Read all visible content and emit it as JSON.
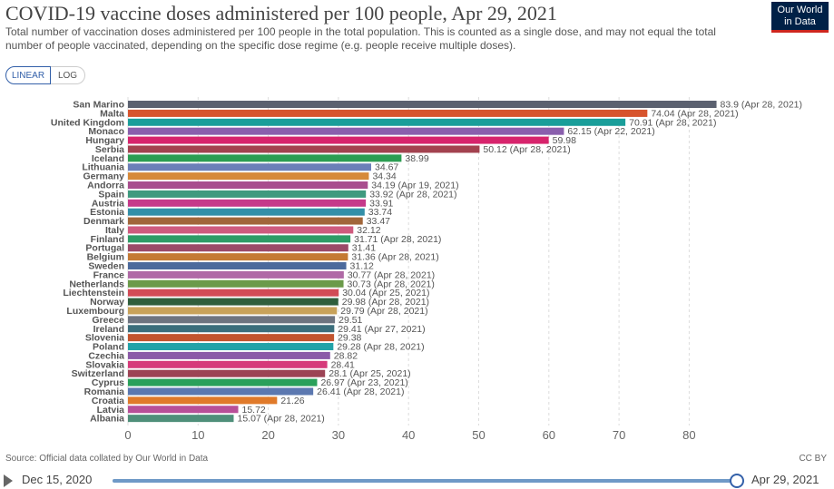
{
  "header": {
    "title": "COVID-19 vaccine doses administered per 100 people, Apr 29, 2021",
    "subtitle": "Total number of vaccination doses administered per 100 people in the total population. This is counted as a single dose, and may not equal the total number of people vaccinated, depending on the specific dose regime (e.g. people receive multiple doses).",
    "logo_line1": "Our World",
    "logo_line2": "in Data"
  },
  "controls": {
    "linear_label": "LINEAR",
    "log_label": "LOG"
  },
  "chart_data": {
    "type": "bar",
    "orientation": "horizontal",
    "title": "COVID-19 vaccine doses administered per 100 people, Apr 29, 2021",
    "xlim": [
      0,
      85
    ],
    "xticks": [
      0,
      10,
      20,
      30,
      40,
      50,
      60,
      70,
      80
    ],
    "grid": true,
    "bars": [
      {
        "country": "San Marino",
        "value": 83.9,
        "label": "83.9 (Apr 28, 2021)",
        "color": "#5b6170"
      },
      {
        "country": "Malta",
        "value": 74.04,
        "label": "74.04 (Apr 28, 2021)",
        "color": "#d7542d"
      },
      {
        "country": "United Kingdom",
        "value": 70.91,
        "label": "70.91 (Apr 28, 2021)",
        "color": "#1a9e9a"
      },
      {
        "country": "Monaco",
        "value": 62.15,
        "label": "62.15 (Apr 22, 2021)",
        "color": "#8a5fad"
      },
      {
        "country": "Hungary",
        "value": 59.98,
        "label": "59.98",
        "color": "#d7246c"
      },
      {
        "country": "Serbia",
        "value": 50.12,
        "label": "50.12 (Apr 28, 2021)",
        "color": "#a3424f"
      },
      {
        "country": "Iceland",
        "value": 38.99,
        "label": "38.99",
        "color": "#2c9d52"
      },
      {
        "country": "Lithuania",
        "value": 34.67,
        "label": "34.67",
        "color": "#6b7fb8"
      },
      {
        "country": "Germany",
        "value": 34.34,
        "label": "34.34",
        "color": "#d68a3a"
      },
      {
        "country": "Andorra",
        "value": 34.19,
        "label": "34.19 (Apr 19, 2021)",
        "color": "#a94e8e"
      },
      {
        "country": "Spain",
        "value": 33.92,
        "label": "33.92 (Apr 28, 2021)",
        "color": "#3f9a7f"
      },
      {
        "country": "Austria",
        "value": 33.91,
        "label": "33.91",
        "color": "#c5398a"
      },
      {
        "country": "Estonia",
        "value": 33.74,
        "label": "33.74",
        "color": "#338fa8"
      },
      {
        "country": "Denmark",
        "value": 33.47,
        "label": "33.47",
        "color": "#a1663a"
      },
      {
        "country": "Italy",
        "value": 32.12,
        "label": "32.12",
        "color": "#cf5b7e"
      },
      {
        "country": "Finland",
        "value": 31.71,
        "label": "31.71 (Apr 28, 2021)",
        "color": "#2e9c66"
      },
      {
        "country": "Portugal",
        "value": 31.41,
        "label": "31.41",
        "color": "#9b4a68"
      },
      {
        "country": "Belgium",
        "value": 31.36,
        "label": "31.36 (Apr 28, 2021)",
        "color": "#c47a34"
      },
      {
        "country": "Sweden",
        "value": 31.12,
        "label": "31.12",
        "color": "#4c6a9c"
      },
      {
        "country": "France",
        "value": 30.77,
        "label": "30.77 (Apr 28, 2021)",
        "color": "#b06aa6"
      },
      {
        "country": "Netherlands",
        "value": 30.73,
        "label": "30.73 (Apr 28, 2021)",
        "color": "#6b9a4a"
      },
      {
        "country": "Liechtenstein",
        "value": 30.04,
        "label": "30.04 (Apr 25, 2021)",
        "color": "#d14b56"
      },
      {
        "country": "Norway",
        "value": 29.98,
        "label": "29.98 (Apr 28, 2021)",
        "color": "#2f5e3c"
      },
      {
        "country": "Luxembourg",
        "value": 29.79,
        "label": "29.79 (Apr 28, 2021)",
        "color": "#c8a25a"
      },
      {
        "country": "Greece",
        "value": 29.51,
        "label": "29.51",
        "color": "#6e7480"
      },
      {
        "country": "Ireland",
        "value": 29.41,
        "label": "29.41 (Apr 27, 2021)",
        "color": "#3b6e7c"
      },
      {
        "country": "Slovenia",
        "value": 29.38,
        "label": "29.38",
        "color": "#c2542e"
      },
      {
        "country": "Poland",
        "value": 29.28,
        "label": "29.28 (Apr 28, 2021)",
        "color": "#22a2a8"
      },
      {
        "country": "Czechia",
        "value": 28.82,
        "label": "28.82",
        "color": "#8b5aa8"
      },
      {
        "country": "Slovakia",
        "value": 28.41,
        "label": "28.41",
        "color": "#d63a7a"
      },
      {
        "country": "Switzerland",
        "value": 28.1,
        "label": "28.1 (Apr 25, 2021)",
        "color": "#9c4455"
      },
      {
        "country": "Cyprus",
        "value": 26.97,
        "label": "26.97 (Apr 23, 2021)",
        "color": "#2aa05a"
      },
      {
        "country": "Romania",
        "value": 26.41,
        "label": "26.41 (Apr 28, 2021)",
        "color": "#5c78b0"
      },
      {
        "country": "Croatia",
        "value": 21.26,
        "label": "21.26",
        "color": "#e07a2a"
      },
      {
        "country": "Latvia",
        "value": 15.72,
        "label": "15.72",
        "color": "#b84f98"
      },
      {
        "country": "Albania",
        "value": 15.07,
        "label": "15.07 (Apr 28, 2021)",
        "color": "#4f8f7a"
      }
    ]
  },
  "footer": {
    "source": "Source: Official data collated by Our World in Data",
    "license": "CC BY"
  },
  "timeline": {
    "start_label": "Dec 15, 2020",
    "end_label": "Apr 29, 2021",
    "progress": 1.0
  }
}
